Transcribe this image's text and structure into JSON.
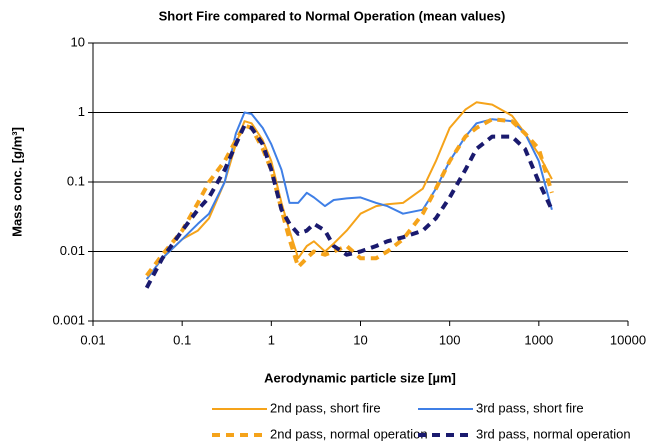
{
  "chart_data": {
    "type": "line",
    "title": "Short Fire compared to Normal Operation (mean values)",
    "x_label": "Aerodynamic particle size [µm]",
    "y_label": "Mass conc. [g/m³]",
    "x": [
      0.04,
      0.06,
      0.1,
      0.15,
      0.2,
      0.3,
      0.4,
      0.5,
      0.6,
      0.8,
      1,
      1.3,
      1.6,
      2,
      2.5,
      3,
      4,
      5,
      7,
      10,
      15,
      20,
      30,
      50,
      70,
      100,
      150,
      200,
      300,
      500,
      700,
      1000,
      1400
    ],
    "series": [
      {
        "name": "2nd pass, short fire",
        "color": "#f5a31a",
        "dashed": false,
        "values": [
          0.004,
          0.008,
          0.015,
          0.02,
          0.03,
          0.1,
          0.35,
          0.75,
          0.7,
          0.4,
          0.2,
          0.05,
          0.02,
          0.008,
          0.012,
          0.014,
          0.01,
          0.013,
          0.02,
          0.035,
          0.045,
          0.048,
          0.05,
          0.08,
          0.2,
          0.6,
          1.1,
          1.4,
          1.3,
          0.9,
          0.5,
          0.25,
          0.11
        ]
      },
      {
        "name": "3rd pass, short fire",
        "color": "#3f7fe6",
        "dashed": false,
        "values": [
          0.004,
          0.008,
          0.015,
          0.025,
          0.035,
          0.1,
          0.5,
          1.0,
          0.95,
          0.6,
          0.35,
          0.15,
          0.05,
          0.05,
          0.07,
          0.06,
          0.045,
          0.055,
          0.058,
          0.06,
          0.05,
          0.045,
          0.035,
          0.04,
          0.08,
          0.2,
          0.45,
          0.7,
          0.8,
          0.75,
          0.5,
          0.2,
          0.04
        ]
      },
      {
        "name": "2nd pass, normal operation",
        "color": "#f5a31a",
        "dashed": true,
        "values": [
          0.0045,
          0.009,
          0.02,
          0.05,
          0.1,
          0.2,
          0.4,
          0.65,
          0.6,
          0.3,
          0.15,
          0.04,
          0.015,
          0.006,
          0.008,
          0.01,
          0.009,
          0.01,
          0.012,
          0.008,
          0.008,
          0.01,
          0.015,
          0.035,
          0.08,
          0.2,
          0.45,
          0.6,
          0.8,
          0.75,
          0.5,
          0.3,
          0.07
        ]
      },
      {
        "name": "3rd pass, normal operation",
        "color": "#1a1a6e",
        "dashed": true,
        "values": [
          0.003,
          0.008,
          0.02,
          0.04,
          0.06,
          0.15,
          0.35,
          0.65,
          0.6,
          0.35,
          0.15,
          0.04,
          0.025,
          0.018,
          0.02,
          0.025,
          0.02,
          0.012,
          0.009,
          0.01,
          0.012,
          0.014,
          0.016,
          0.02,
          0.03,
          0.06,
          0.15,
          0.3,
          0.45,
          0.45,
          0.3,
          0.1,
          0.04
        ]
      }
    ],
    "xlog": true,
    "ylog": true,
    "xlim": [
      0.01,
      10000
    ],
    "xticks": [
      0.01,
      0.1,
      1,
      10,
      100,
      1000,
      10000
    ],
    "ylim": [
      0.001,
      10
    ],
    "yticks": [
      0.001,
      0.01,
      0.1,
      1,
      10
    ],
    "grid": true,
    "legend": "bottom"
  }
}
